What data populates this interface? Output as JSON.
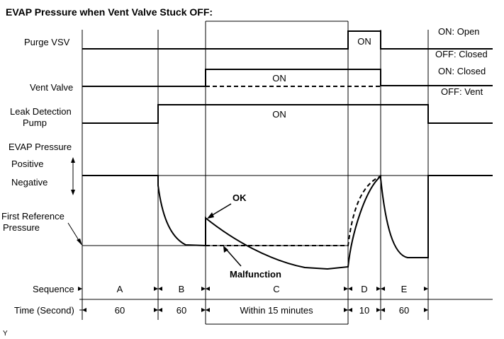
{
  "title": "EVAP Pressure when Vent Valve Stuck OFF:",
  "rows": {
    "purge_vsv": "Purge VSV",
    "vent_valve": "Vent Valve",
    "leak_pump_line1": "Leak Detection",
    "leak_pump_line2": "Pump",
    "evap_pressure": "EVAP Pressure",
    "positive": "Positive",
    "negative": "Negative",
    "first_ref_line1": "First Reference",
    "first_ref_line2": "Pressure",
    "sequence": "Sequence",
    "time": "Time (Second)"
  },
  "state_labels": {
    "purge_on": "ON: Open",
    "purge_off": "OFF: Closed",
    "vent_on": "ON: Closed",
    "vent_off": "OFF: Vent"
  },
  "signal_labels": {
    "purge_on": "ON",
    "vent_on": "ON",
    "pump_on": "ON"
  },
  "annotations": {
    "ok": "OK",
    "malfunction": "Malfunction"
  },
  "sequence": [
    "A",
    "B",
    "C",
    "D",
    "E"
  ],
  "time": [
    "60",
    "60",
    "Within 15 minutes",
    "10",
    "60"
  ],
  "footer_mark": "Y"
}
